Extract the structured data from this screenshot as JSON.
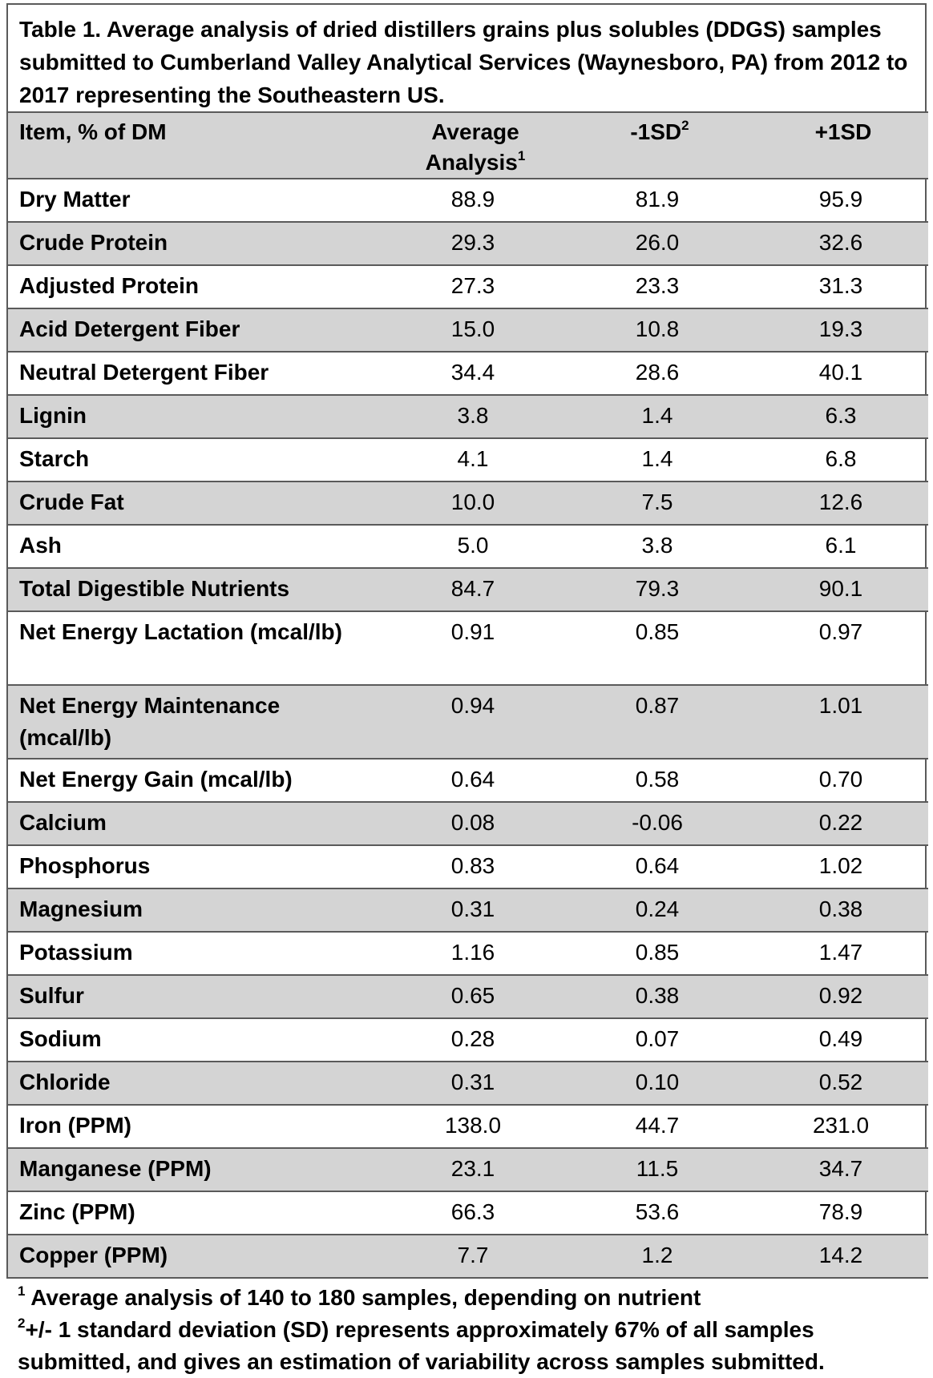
{
  "caption": "Table 1. Average analysis of dried distillers grains plus solubles (DDGS) samples submitted to Cumberland Valley Analytical Services (Waynesboro, PA) from 2012 to 2017 representing the Southeastern US.",
  "headers": {
    "item": "Item, % of DM",
    "average": "Average Analysis",
    "average_sup": "1",
    "minus_sd": "-1SD",
    "minus_sd_sup": "2",
    "plus_sd": "+1SD"
  },
  "rows": [
    {
      "item": "Dry Matter",
      "avg": "88.9",
      "minus": "81.9",
      "plus": "95.9"
    },
    {
      "item": "Crude Protein",
      "avg": "29.3",
      "minus": "26.0",
      "plus": "32.6"
    },
    {
      "item": "Adjusted Protein",
      "avg": "27.3",
      "minus": "23.3",
      "plus": "31.3"
    },
    {
      "item": "Acid Detergent Fiber",
      "avg": "15.0",
      "minus": "10.8",
      "plus": "19.3"
    },
    {
      "item": "Neutral Detergent Fiber",
      "avg": "34.4",
      "minus": "28.6",
      "plus": "40.1"
    },
    {
      "item": "Lignin",
      "avg": "3.8",
      "minus": "1.4",
      "plus": "6.3"
    },
    {
      "item": "Starch",
      "avg": "4.1",
      "minus": "1.4",
      "plus": "6.8"
    },
    {
      "item": "Crude Fat",
      "avg": "10.0",
      "minus": "7.5",
      "plus": "12.6"
    },
    {
      "item": "Ash",
      "avg": "5.0",
      "minus": "3.8",
      "plus": "6.1"
    },
    {
      "item": "Total Digestible Nutrients",
      "avg": "84.7",
      "minus": "79.3",
      "plus": "90.1"
    },
    {
      "item": "Net Energy Lactation (mcal/lb)",
      "avg": "0.91",
      "minus": "0.85",
      "plus": "0.97"
    },
    {
      "item": "Net Energy Maintenance (mcal/lb)",
      "avg": "0.94",
      "minus": "0.87",
      "plus": "1.01"
    },
    {
      "item": "Net Energy Gain (mcal/lb)",
      "avg": "0.64",
      "minus": "0.58",
      "plus": "0.70"
    },
    {
      "item": "Calcium",
      "avg": "0.08",
      "minus": "-0.06",
      "plus": "0.22"
    },
    {
      "item": "Phosphorus",
      "avg": "0.83",
      "minus": "0.64",
      "plus": "1.02"
    },
    {
      "item": "Magnesium",
      "avg": "0.31",
      "minus": "0.24",
      "plus": "0.38"
    },
    {
      "item": "Potassium",
      "avg": "1.16",
      "minus": "0.85",
      "plus": "1.47"
    },
    {
      "item": "Sulfur",
      "avg": "0.65",
      "minus": "0.38",
      "plus": "0.92"
    },
    {
      "item": "Sodium",
      "avg": "0.28",
      "minus": "0.07",
      "plus": "0.49"
    },
    {
      "item": "Chloride",
      "avg": "0.31",
      "minus": "0.10",
      "plus": "0.52"
    },
    {
      "item": "Iron (PPM)",
      "avg": "138.0",
      "minus": "44.7",
      "plus": "231.0"
    },
    {
      "item": "Manganese (PPM)",
      "avg": "23.1",
      "minus": "11.5",
      "plus": "34.7"
    },
    {
      "item": "Zinc (PPM)",
      "avg": "66.3",
      "minus": "53.6",
      "plus": "78.9"
    },
    {
      "item": "Copper (PPM)",
      "avg": "7.7",
      "minus": "1.2",
      "plus": "14.2"
    }
  ],
  "footnotes": [
    {
      "mark": "1",
      "text": "Average analysis of 140 to 180 samples, depending on nutrient"
    },
    {
      "mark": "2",
      "text": "+/- 1 standard deviation (SD) represents approximately 67% of all samples submitted, and gives an estimation of variability across samples submitted."
    }
  ]
}
